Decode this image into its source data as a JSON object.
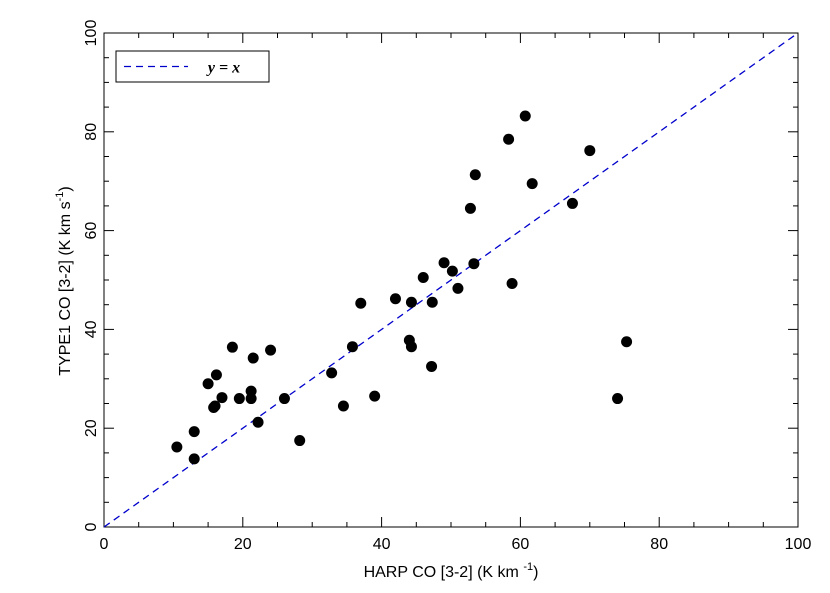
{
  "chart_data": {
    "type": "scatter",
    "xlabel": "HARP CO [3-2] (K km ",
    "xlabel_sup": "-1",
    "xlabel_end": ")",
    "ylabel": "TYPE1 CO [3-2] (K km s",
    "ylabel_sup": "-1",
    "ylabel_end": ")",
    "xlim": [
      0,
      100
    ],
    "ylim": [
      0,
      100
    ],
    "x_ticks": [
      0,
      20,
      40,
      60,
      80,
      100
    ],
    "y_ticks": [
      0,
      20,
      40,
      60,
      80,
      100
    ],
    "legend": {
      "placement": "top-left",
      "entries": [
        {
          "label": "y = x"
        }
      ]
    },
    "colors": {
      "reference_line": "#0000cc",
      "points": "#000000"
    },
    "reference_line": {
      "style": "dashed",
      "from": [
        0,
        0
      ],
      "to": [
        100,
        100
      ]
    },
    "series": [
      {
        "points": [
          [
            10.5,
            16.2
          ],
          [
            13,
            13.8
          ],
          [
            13,
            19.3
          ],
          [
            15,
            29
          ],
          [
            15.8,
            24.2
          ],
          [
            16,
            24.5
          ],
          [
            16.2,
            30.8
          ],
          [
            17,
            26.2
          ],
          [
            18.5,
            36.4
          ],
          [
            19.5,
            26
          ],
          [
            21.2,
            27.5
          ],
          [
            21.2,
            26
          ],
          [
            21.5,
            34.2
          ],
          [
            22.2,
            21.2
          ],
          [
            24,
            35.8
          ],
          [
            26,
            26
          ],
          [
            28.2,
            17.5
          ],
          [
            32.8,
            31.2
          ],
          [
            34.5,
            24.5
          ],
          [
            35.8,
            36.5
          ],
          [
            37,
            45.3
          ],
          [
            39,
            26.5
          ],
          [
            42,
            46.2
          ],
          [
            44,
            37.8
          ],
          [
            44.3,
            36.5
          ],
          [
            44.3,
            45.5
          ],
          [
            46,
            50.5
          ],
          [
            47.2,
            32.5
          ],
          [
            47.3,
            45.5
          ],
          [
            49,
            53.5
          ],
          [
            50.2,
            51.8
          ],
          [
            51,
            48.3
          ],
          [
            52.8,
            64.5
          ],
          [
            53.3,
            53.3
          ],
          [
            53.5,
            71.3
          ],
          [
            58.3,
            78.5
          ],
          [
            58.8,
            49.3
          ],
          [
            60.7,
            83.2
          ],
          [
            61.7,
            69.5
          ],
          [
            67.5,
            65.5
          ],
          [
            70,
            76.2
          ],
          [
            74,
            26
          ],
          [
            75.3,
            37.5
          ]
        ]
      }
    ]
  }
}
